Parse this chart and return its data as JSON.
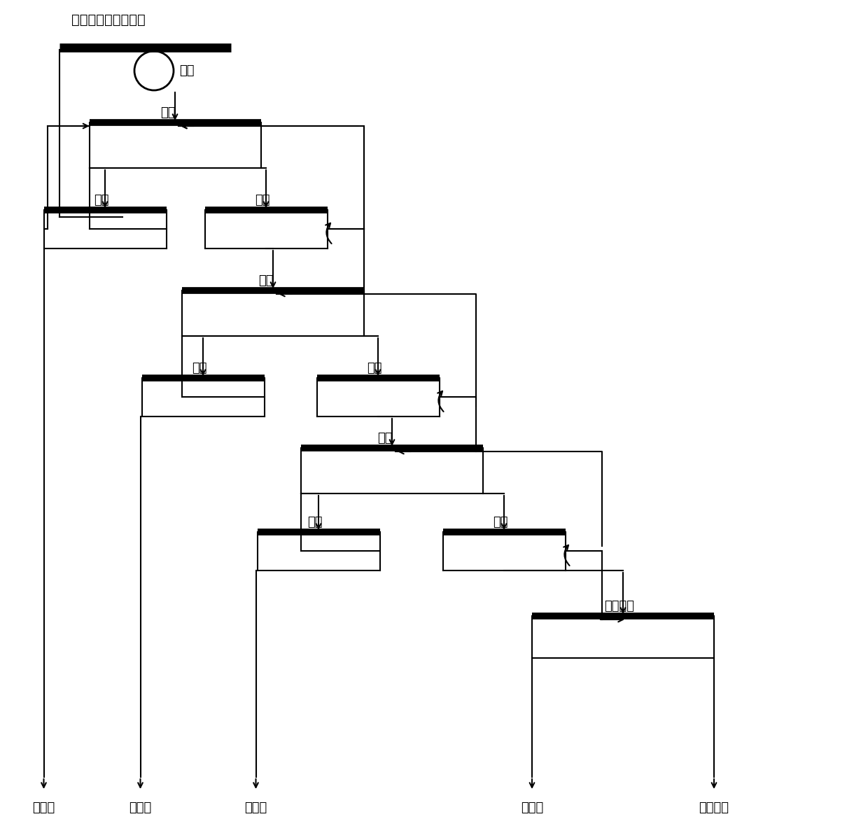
{
  "bg_color": "#ffffff",
  "lc": "#000000",
  "title": "含硫化矿的錨粗精矿",
  "label_mokuang": "磨矿",
  "label_cuxuan1": "粗选",
  "label_jingxuan1": "精选",
  "label_saoxuan1": "扫选",
  "label_cuxuan2": "粗选",
  "label_jingxuan2": "精选",
  "label_saoxuan2": "扫选",
  "label_cuxuan3": "粗选",
  "label_jingxuan3": "精选",
  "label_saoxuan3": "扫选",
  "label_yaochuang": "摇床重选",
  "out1": "铜精矿",
  "out2": "铋精矿",
  "out3": "硫精矿",
  "out4": "錨精矿",
  "out5": "選錨尾矿",
  "figw": 12.4,
  "figh": 11.8
}
